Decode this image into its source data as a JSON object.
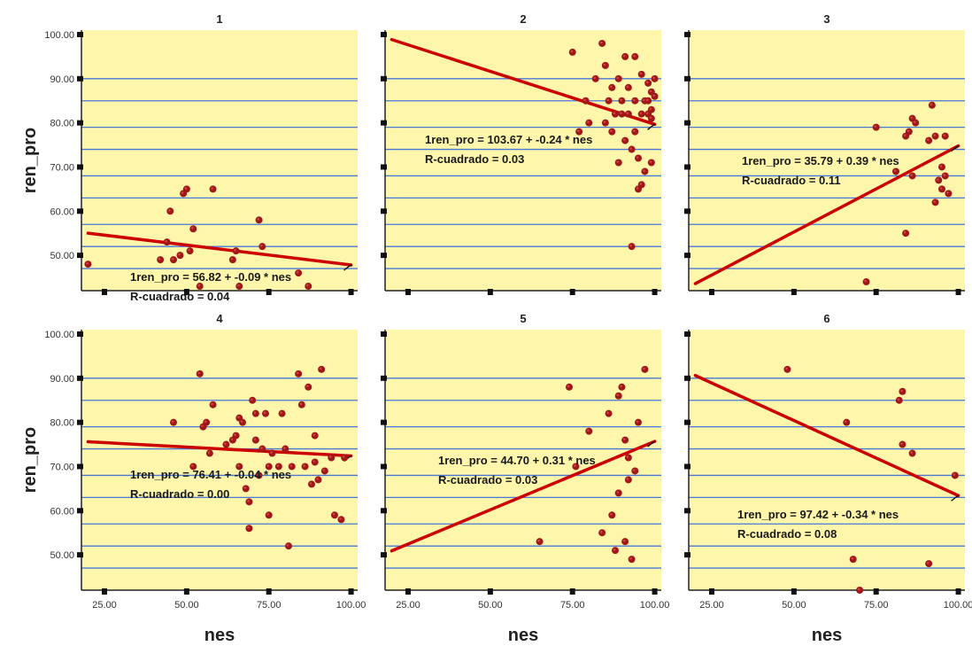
{
  "chart_data": {
    "type": "scatter",
    "x_label": "nes",
    "y_label": "ren_pro",
    "x_ticks": [
      "25.00",
      "50.00",
      "75.00",
      "100.00"
    ],
    "y_ticks": [
      "50.00",
      "60.00",
      "70.00",
      "80.00",
      "90.00",
      "100.00"
    ],
    "xlim": [
      18,
      102
    ],
    "ylim": [
      42,
      101
    ],
    "grid": true,
    "colors": {
      "background": "#fdf6ab",
      "grid": "#4a78d8",
      "points": "#a01818",
      "fit": "#cc0000"
    },
    "panels": [
      {
        "title": "1",
        "points": [
          [
            20,
            48
          ],
          [
            42,
            49
          ],
          [
            44,
            53
          ],
          [
            45,
            60
          ],
          [
            46,
            49
          ],
          [
            48,
            50
          ],
          [
            49,
            64
          ],
          [
            50,
            65
          ],
          [
            51,
            51
          ],
          [
            52,
            56
          ],
          [
            54,
            43
          ],
          [
            58,
            65
          ],
          [
            64,
            49
          ],
          [
            65,
            51
          ],
          [
            66,
            43
          ],
          [
            72,
            58
          ],
          [
            73,
            52
          ],
          [
            84,
            46
          ],
          [
            87,
            43
          ]
        ],
        "fit": {
          "intercept": 56.82,
          "slope": -0.09,
          "x_range": [
            20,
            100
          ]
        },
        "equation": "1ren_pro = 56.82 + -0.09 * nes",
        "r_squared": "R-cuadrado = 0.04"
      },
      {
        "title": "2",
        "points": [
          [
            75,
            96
          ],
          [
            77,
            78
          ],
          [
            79,
            85
          ],
          [
            80,
            80
          ],
          [
            82,
            90
          ],
          [
            84,
            98
          ],
          [
            85,
            93
          ],
          [
            85,
            80
          ],
          [
            86,
            85
          ],
          [
            87,
            88
          ],
          [
            87,
            78
          ],
          [
            88,
            82
          ],
          [
            89,
            90
          ],
          [
            89,
            71
          ],
          [
            90,
            85
          ],
          [
            90,
            82
          ],
          [
            91,
            95
          ],
          [
            91,
            76
          ],
          [
            92,
            88
          ],
          [
            92,
            82
          ],
          [
            93,
            52
          ],
          [
            93,
            74
          ],
          [
            94,
            85
          ],
          [
            94,
            78
          ],
          [
            94,
            95
          ],
          [
            95,
            65
          ],
          [
            95,
            72
          ],
          [
            96,
            91
          ],
          [
            96,
            66
          ],
          [
            96,
            82
          ],
          [
            97,
            85
          ],
          [
            97,
            69
          ],
          [
            98,
            89
          ],
          [
            98,
            85
          ],
          [
            98,
            82
          ],
          [
            99,
            81
          ],
          [
            99,
            71
          ],
          [
            99,
            83
          ],
          [
            99,
            87
          ],
          [
            100,
            86
          ],
          [
            100,
            90
          ]
        ],
        "fit": {
          "intercept": 103.67,
          "slope": -0.24,
          "x_range": [
            20,
            100
          ]
        },
        "equation": "1ren_pro = 103.67 + -0.24 * nes",
        "r_squared": "R-cuadrado = 0.03"
      },
      {
        "title": "3",
        "points": [
          [
            72,
            44
          ],
          [
            75,
            79
          ],
          [
            81,
            69
          ],
          [
            84,
            55
          ],
          [
            84,
            77
          ],
          [
            85,
            78
          ],
          [
            86,
            81
          ],
          [
            86,
            68
          ],
          [
            87,
            80
          ],
          [
            91,
            76
          ],
          [
            92,
            84
          ],
          [
            93,
            77
          ],
          [
            93,
            62
          ],
          [
            94,
            67
          ],
          [
            95,
            70
          ],
          [
            95,
            65
          ],
          [
            96,
            68
          ],
          [
            96,
            77
          ],
          [
            97,
            64
          ]
        ],
        "fit": {
          "intercept": 35.79,
          "slope": 0.39,
          "x_range": [
            20,
            100
          ]
        },
        "equation": "1ren_pro = 35.79 + 0.39 * nes",
        "r_squared": "R-cuadrado = 0.11"
      },
      {
        "title": "4",
        "points": [
          [
            46,
            80
          ],
          [
            52,
            70
          ],
          [
            54,
            91
          ],
          [
            55,
            79
          ],
          [
            56,
            80
          ],
          [
            57,
            73
          ],
          [
            58,
            84
          ],
          [
            62,
            75
          ],
          [
            64,
            76
          ],
          [
            65,
            77
          ],
          [
            66,
            81
          ],
          [
            66,
            70
          ],
          [
            67,
            80
          ],
          [
            68,
            65
          ],
          [
            69,
            56
          ],
          [
            69,
            62
          ],
          [
            70,
            85
          ],
          [
            71,
            82
          ],
          [
            71,
            76
          ],
          [
            72,
            68
          ],
          [
            73,
            74
          ],
          [
            74,
            82
          ],
          [
            75,
            59
          ],
          [
            75,
            70
          ],
          [
            76,
            73
          ],
          [
            78,
            70
          ],
          [
            79,
            82
          ],
          [
            80,
            74
          ],
          [
            81,
            52
          ],
          [
            82,
            70
          ],
          [
            84,
            91
          ],
          [
            85,
            84
          ],
          [
            86,
            70
          ],
          [
            87,
            88
          ],
          [
            88,
            66
          ],
          [
            89,
            77
          ],
          [
            89,
            71
          ],
          [
            90,
            67
          ],
          [
            91,
            92
          ],
          [
            92,
            69
          ],
          [
            94,
            72
          ],
          [
            95,
            59
          ],
          [
            97,
            58
          ],
          [
            98,
            72
          ]
        ],
        "fit": {
          "intercept": 76.41,
          "slope": -0.04,
          "x_range": [
            20,
            100
          ]
        },
        "equation": "1ren_pro = 76.41 + -0.04 * nes",
        "r_squared": "R-cuadrado = 0.00"
      },
      {
        "title": "5",
        "points": [
          [
            65,
            53
          ],
          [
            74,
            88
          ],
          [
            76,
            70
          ],
          [
            80,
            78
          ],
          [
            84,
            55
          ],
          [
            86,
            82
          ],
          [
            87,
            59
          ],
          [
            88,
            51
          ],
          [
            89,
            64
          ],
          [
            89,
            86
          ],
          [
            90,
            88
          ],
          [
            91,
            76
          ],
          [
            91,
            53
          ],
          [
            92,
            72
          ],
          [
            92,
            67
          ],
          [
            93,
            49
          ],
          [
            94,
            69
          ],
          [
            95,
            80
          ],
          [
            97,
            92
          ]
        ],
        "fit": {
          "intercept": 44.7,
          "slope": 0.31,
          "x_range": [
            20,
            100
          ]
        },
        "equation": "1ren_pro = 44.70 + 0.31 * nes",
        "r_squared": "R-cuadrado = 0.03"
      },
      {
        "title": "6",
        "points": [
          [
            48,
            92
          ],
          [
            66,
            80
          ],
          [
            68,
            49
          ],
          [
            70,
            42
          ],
          [
            82,
            85
          ],
          [
            83,
            87
          ],
          [
            83,
            75
          ],
          [
            86,
            73
          ],
          [
            91,
            48
          ],
          [
            99,
            68
          ]
        ],
        "fit": {
          "intercept": 97.42,
          "slope": -0.34,
          "x_range": [
            20,
            100
          ]
        },
        "equation": "1ren_pro = 97.42 + -0.34 * nes",
        "r_squared": "R-cuadrado = 0.08"
      }
    ]
  }
}
